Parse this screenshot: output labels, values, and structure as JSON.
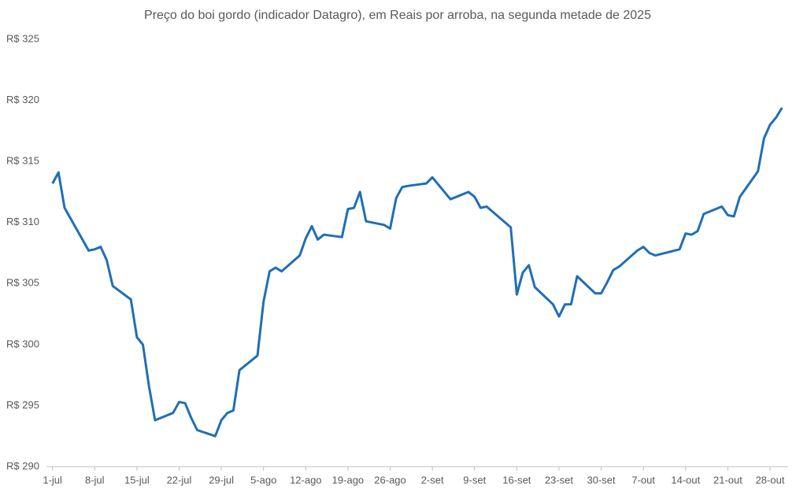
{
  "chart_data": {
    "type": "line",
    "title": "Preço do boi gordo (indicador Datagro), em Reais por arroba, na segunda metade de 2025",
    "x": [
      0,
      1,
      2,
      6,
      7,
      8,
      9,
      10,
      13,
      14,
      15,
      16,
      17,
      20,
      21,
      22,
      23,
      24,
      27,
      28,
      29,
      30,
      31,
      34,
      35,
      36,
      37,
      38,
      41,
      42,
      43,
      44,
      45,
      48,
      49,
      50,
      51,
      52,
      55,
      56,
      57,
      58,
      59,
      62,
      63,
      66,
      69,
      70,
      71,
      72,
      76,
      77,
      78,
      79,
      80,
      83,
      84,
      85,
      86,
      87,
      90,
      91,
      92,
      93,
      94,
      97,
      98,
      99,
      100,
      104,
      105,
      106,
      107,
      108,
      111,
      112,
      113,
      114,
      117,
      118,
      119,
      120,
      121
    ],
    "series": [
      {
        "color": "#1f6fb5",
        "values": [
          313.2,
          314.1,
          311.2,
          307.7,
          307.8,
          308.0,
          306.9,
          304.8,
          303.7,
          300.6,
          300.0,
          296.6,
          293.8,
          294.4,
          295.3,
          295.2,
          294.0,
          293.0,
          292.5,
          293.8,
          294.4,
          294.6,
          297.9,
          299.1,
          303.5,
          306.0,
          306.3,
          306.0,
          307.3,
          308.7,
          309.7,
          308.6,
          309.0,
          308.8,
          311.1,
          311.2,
          312.5,
          310.1,
          309.8,
          309.5,
          312.0,
          312.9,
          313.0,
          313.2,
          313.7,
          311.9,
          312.5,
          312.1,
          311.2,
          311.3,
          309.6,
          304.1,
          305.9,
          306.5,
          304.7,
          303.3,
          302.3,
          303.3,
          303.3,
          305.6,
          304.2,
          304.2,
          305.1,
          306.1,
          306.4,
          307.7,
          308.0,
          307.5,
          307.3,
          307.8,
          309.1,
          309.0,
          309.3,
          310.7,
          311.3,
          310.6,
          310.5,
          312.1,
          314.2,
          316.9,
          318.0,
          318.6,
          319.4
        ]
      }
    ],
    "xlim": [
      -1,
      122
    ],
    "xticks": [
      {
        "value": 0,
        "label": "1-jul"
      },
      {
        "value": 7,
        "label": "8-jul"
      },
      {
        "value": 14,
        "label": "15-jul"
      },
      {
        "value": 21,
        "label": "22-jul"
      },
      {
        "value": 28,
        "label": "29-jul"
      },
      {
        "value": 35,
        "label": "5-ago"
      },
      {
        "value": 42,
        "label": "12-ago"
      },
      {
        "value": 49,
        "label": "19-ago"
      },
      {
        "value": 56,
        "label": "26-ago"
      },
      {
        "value": 63,
        "label": "2-set"
      },
      {
        "value": 70,
        "label": "9-set"
      },
      {
        "value": 77,
        "label": "16-set"
      },
      {
        "value": 84,
        "label": "23-set"
      },
      {
        "value": 91,
        "label": "30-set"
      },
      {
        "value": 98,
        "label": "7-out"
      },
      {
        "value": 105,
        "label": "14-out"
      },
      {
        "value": 112,
        "label": "21-out"
      },
      {
        "value": 119,
        "label": "28-out"
      }
    ],
    "ylim": [
      290,
      325
    ],
    "yticks": [
      {
        "value": 290,
        "label": "R$ 290"
      },
      {
        "value": 295,
        "label": "R$ 295"
      },
      {
        "value": 300,
        "label": "R$ 300"
      },
      {
        "value": 305,
        "label": "R$ 305"
      },
      {
        "value": 310,
        "label": "R$ 310"
      },
      {
        "value": 315,
        "label": "R$ 315"
      },
      {
        "value": 320,
        "label": "R$ 320"
      },
      {
        "value": 325,
        "label": "R$ 325"
      }
    ],
    "grid": false
  }
}
